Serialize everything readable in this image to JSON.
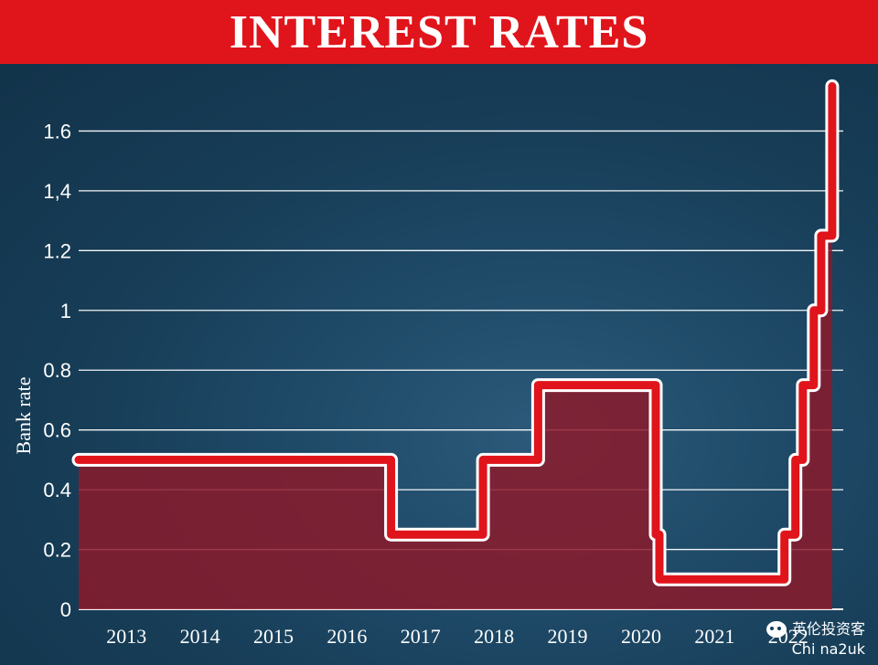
{
  "title": "INTEREST RATES",
  "colors": {
    "title_bar": "#e0141b",
    "background": "#173d57",
    "line": "#e0141b",
    "area_fill": "#8b1a2b",
    "grid": "#ffffff",
    "text": "#ffffff"
  },
  "watermark": {
    "line1": "英伦投资客",
    "line2": "Chi na2uk"
  },
  "chart_data": {
    "type": "line",
    "step": true,
    "ylabel": "Bank rate",
    "xlabel": "",
    "xlim": [
      2012.35,
      2022.75
    ],
    "ylim": [
      0,
      1.8
    ],
    "yticks": [
      0,
      0.2,
      0.4,
      0.6,
      0.8,
      1,
      1.2,
      1.4,
      1.6
    ],
    "ytick_labels": [
      "0",
      "0.2",
      "0.4",
      "0.6",
      "0.8",
      "1",
      "1.2",
      "1,4",
      "1.6"
    ],
    "xticks": [
      2013,
      2014,
      2015,
      2016,
      2017,
      2018,
      2019,
      2020,
      2021,
      2022
    ],
    "xtick_labels": [
      "2013",
      "2014",
      "2015",
      "2016",
      "2017",
      "2018",
      "2019",
      "2020",
      "2021",
      "2022"
    ],
    "grid": true,
    "series": [
      {
        "points": [
          [
            2012.35,
            0.5
          ],
          [
            2016.6,
            0.5
          ],
          [
            2016.6,
            0.25
          ],
          [
            2017.85,
            0.25
          ],
          [
            2017.85,
            0.5
          ],
          [
            2018.6,
            0.5
          ],
          [
            2018.6,
            0.75
          ],
          [
            2020.2,
            0.75
          ],
          [
            2020.2,
            0.25
          ],
          [
            2020.25,
            0.25
          ],
          [
            2020.25,
            0.1
          ],
          [
            2021.95,
            0.1
          ],
          [
            2021.95,
            0.25
          ],
          [
            2022.1,
            0.25
          ],
          [
            2022.1,
            0.5
          ],
          [
            2022.2,
            0.5
          ],
          [
            2022.2,
            0.75
          ],
          [
            2022.35,
            0.75
          ],
          [
            2022.35,
            1.0
          ],
          [
            2022.45,
            1.0
          ],
          [
            2022.45,
            1.25
          ],
          [
            2022.6,
            1.25
          ],
          [
            2022.6,
            1.75
          ]
        ]
      }
    ]
  }
}
